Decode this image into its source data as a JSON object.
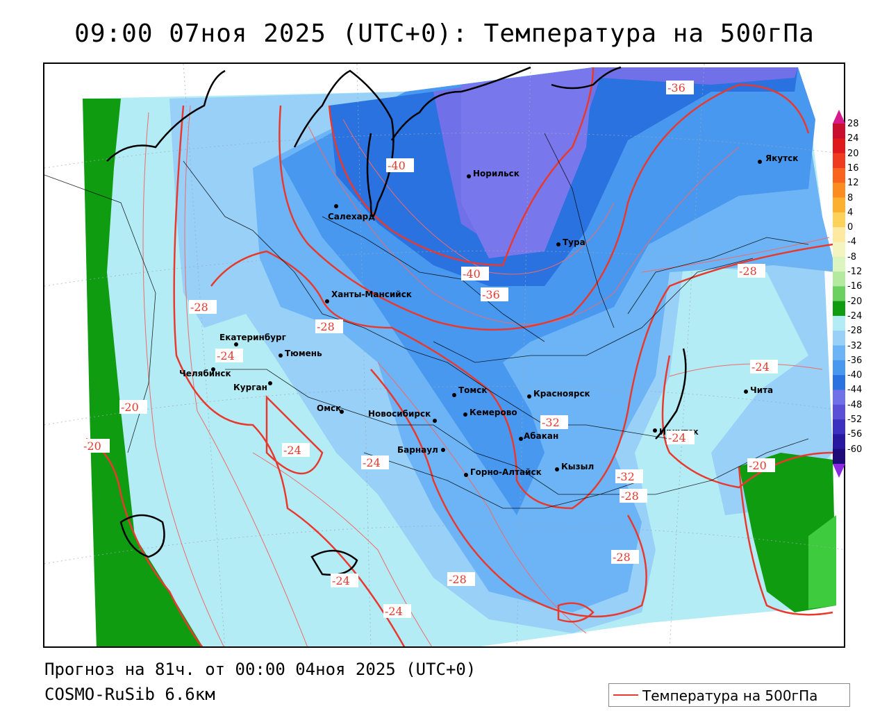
{
  "title": "09:00 07ноя 2025 (UTC+0): Температура на 500гПа",
  "footer": {
    "forecast": "Прогноз на 81ч. от 00:00 04ноя 2025 (UTC+0)",
    "model": "COSMO-RuSib 6.6км"
  },
  "legend": {
    "label": "Температура на 500гПа",
    "color": "#e8392e"
  },
  "colorbar": {
    "labels": [
      "28",
      "24",
      "20",
      "16",
      "12",
      "8",
      "4",
      "0",
      "-4",
      "-8",
      "-12",
      "-16",
      "-20",
      "-24",
      "-28",
      "-32",
      "-36",
      "-40",
      "-44",
      "-48",
      "-52",
      "-56",
      "-60"
    ],
    "colors": [
      "#c8102e",
      "#e01a1a",
      "#f03c1e",
      "#f8641e",
      "#fb8c22",
      "#fcb030",
      "#fdd25a",
      "#fdeaa0",
      "#f4f4c0",
      "#dcf5c0",
      "#b4eaa0",
      "#6cd060",
      "#109c10",
      "#b4ecf5",
      "#98d0f8",
      "#6cb4f5",
      "#4898f0",
      "#2a72e0",
      "#7070e8",
      "#5a50d8",
      "#3c30c0",
      "#2818a0",
      "#1e0a78"
    ]
  },
  "cities": [
    {
      "name": "Якутск"
    },
    {
      "name": "Норильск"
    },
    {
      "name": "Салехард"
    },
    {
      "name": "Тура"
    },
    {
      "name": "Ханты-Мансийск"
    },
    {
      "name": "Екатеринбург"
    },
    {
      "name": "Тюмень"
    },
    {
      "name": "Челябинск"
    },
    {
      "name": "Курган"
    },
    {
      "name": "Омск"
    },
    {
      "name": "Новосибирск"
    },
    {
      "name": "Томск"
    },
    {
      "name": "Кемерово"
    },
    {
      "name": "Красноярск"
    },
    {
      "name": "Барнаул"
    },
    {
      "name": "Абакан"
    },
    {
      "name": "Горно-Алтайск"
    },
    {
      "name": "Кызыл"
    },
    {
      "name": "Иркутск"
    },
    {
      "name": "Чита"
    }
  ],
  "contour_labels": [
    "-36",
    "-40",
    "-40",
    "-36",
    "-28",
    "-28",
    "-28",
    "-24",
    "-20",
    "-20",
    "-24",
    "-24",
    "-32",
    "-24",
    "-24",
    "-32",
    "-28",
    "-20",
    "-24",
    "-28",
    "-28",
    "-24"
  ]
}
